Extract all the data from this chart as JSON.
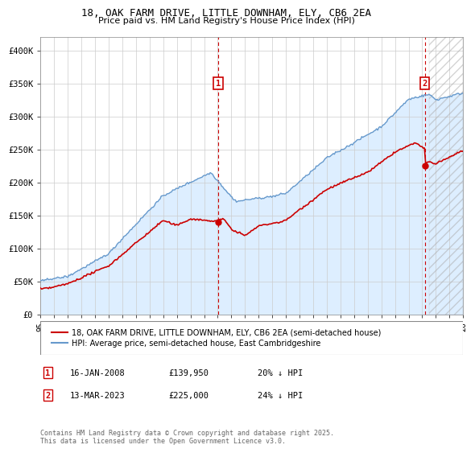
{
  "title": "18, OAK FARM DRIVE, LITTLE DOWNHAM, ELY, CB6 2EA",
  "subtitle": "Price paid vs. HM Land Registry's House Price Index (HPI)",
  "legend_label_red": "18, OAK FARM DRIVE, LITTLE DOWNHAM, ELY, CB6 2EA (semi-detached house)",
  "legend_label_blue": "HPI: Average price, semi-detached house, East Cambridgeshire",
  "footer": "Contains HM Land Registry data © Crown copyright and database right 2025.\nThis data is licensed under the Open Government Licence v3.0.",
  "annotation1_date": "16-JAN-2008",
  "annotation1_price": "£139,950",
  "annotation1_hpi": "20% ↓ HPI",
  "annotation2_date": "13-MAR-2023",
  "annotation2_price": "£225,000",
  "annotation2_hpi": "24% ↓ HPI",
  "red_color": "#cc0000",
  "blue_color": "#6699cc",
  "fill_color": "#ddeeff",
  "background_color": "#ffffff",
  "grid_color": "#cccccc",
  "ylim": [
    0,
    420000
  ],
  "yticks": [
    0,
    50000,
    100000,
    150000,
    200000,
    250000,
    300000,
    350000,
    400000
  ],
  "ytick_labels": [
    "£0",
    "£50K",
    "£100K",
    "£150K",
    "£200K",
    "£250K",
    "£300K",
    "£350K",
    "£400K"
  ],
  "sale1_year": 2008.04,
  "sale1_price": 139950,
  "sale2_year": 2023.19,
  "sale2_price": 225000,
  "year_start": 1995,
  "year_end": 2026
}
